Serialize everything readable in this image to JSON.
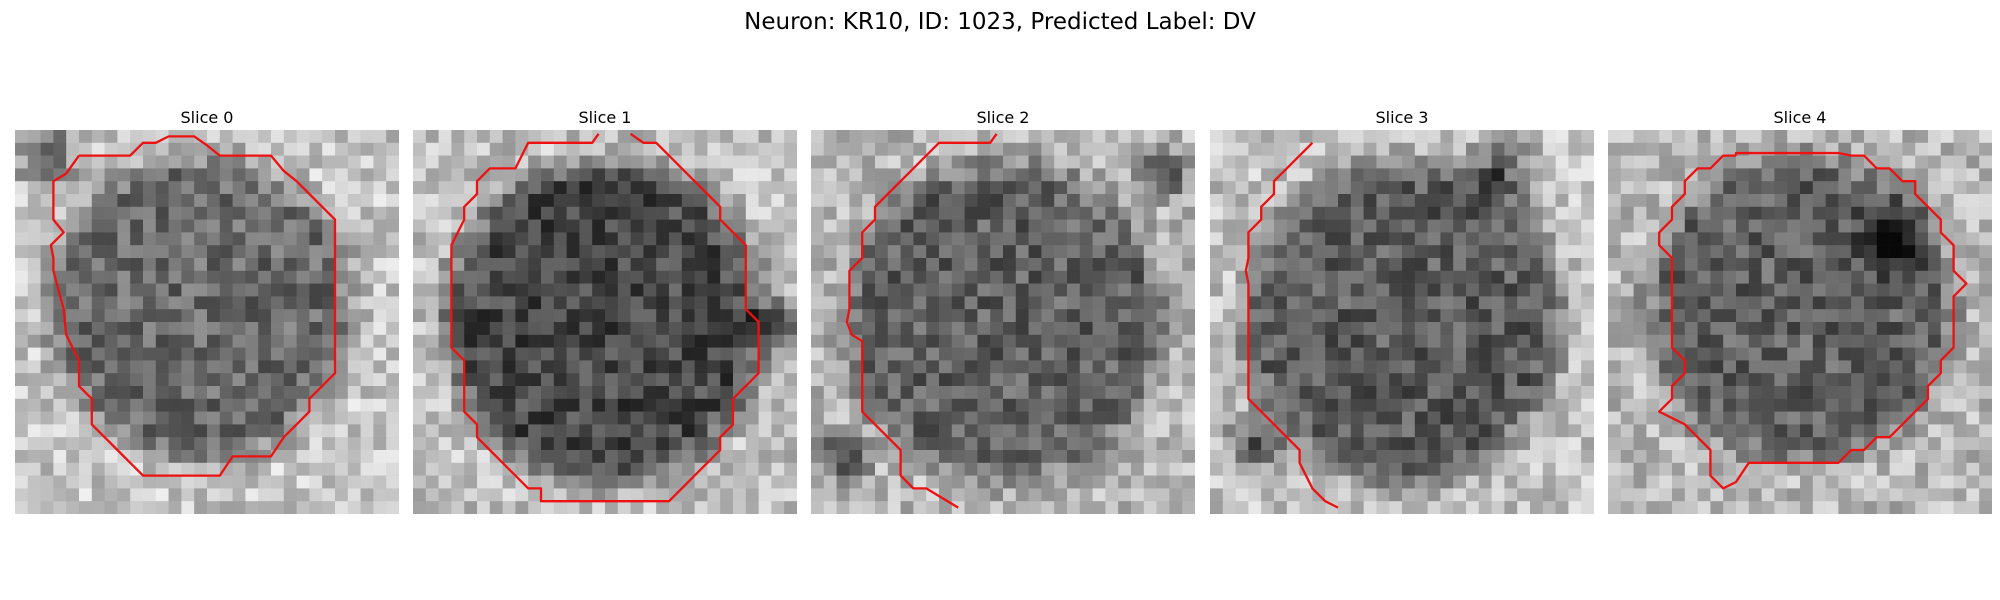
{
  "figure": {
    "title": "Neuron: KR10, ID: 1023, Predicted Label: DV",
    "contour_color": "#ee1111",
    "colormap": "grayscale"
  },
  "slices": [
    {
      "title": "Slice 0"
    },
    {
      "title": "Slice 1"
    },
    {
      "title": "Slice 2"
    },
    {
      "title": "Slice 3"
    },
    {
      "title": "Slice 4"
    }
  ]
}
